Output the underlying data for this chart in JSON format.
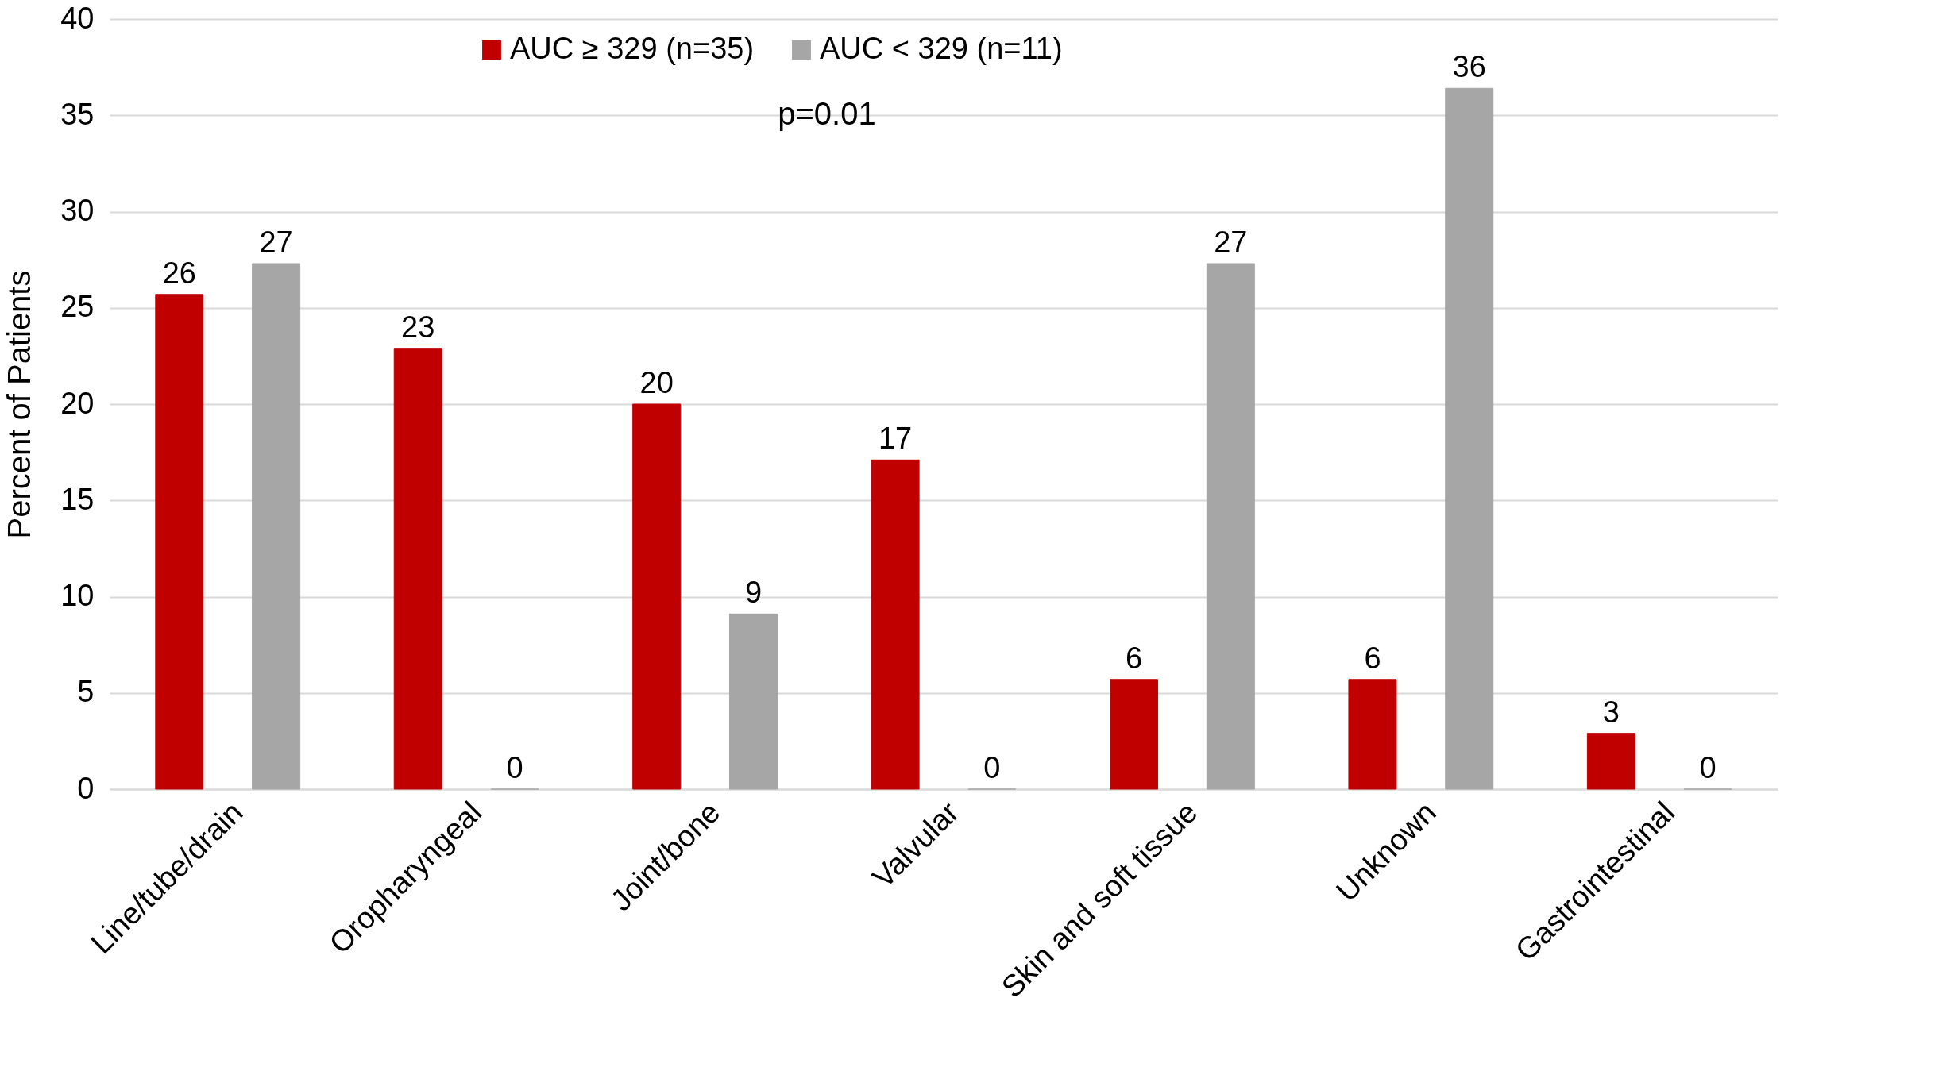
{
  "chart_data": {
    "type": "bar",
    "ylabel": "Percent of Patients",
    "categories": [
      "Line/tube/drain",
      "Oropharyngeal",
      "Joint/bone",
      "Valvular",
      "Skin and soft tissue",
      "Unknown",
      "Gastrointestinal"
    ],
    "series": [
      {
        "name": "AUC ≥ 329 (n=35)",
        "color": "#c00000",
        "values": [
          25.7,
          22.9,
          20.0,
          17.1,
          5.7,
          5.7,
          2.9
        ],
        "value_labels": [
          "26",
          "23",
          "20",
          "17",
          "6",
          "6",
          "3"
        ]
      },
      {
        "name": "AUC < 329 (n=11)",
        "color": "#a6a6a6",
        "values": [
          27.3,
          0,
          9.1,
          0,
          27.3,
          36.4,
          0
        ],
        "value_labels": [
          "27",
          "0",
          "9",
          "0",
          "27",
          "36",
          "0"
        ]
      }
    ],
    "ylim": [
      0,
      40
    ],
    "yticks": [
      0,
      5,
      10,
      15,
      20,
      25,
      30,
      35,
      40
    ],
    "grid": "y",
    "legend": "top",
    "annotations": [
      "p=0.01"
    ]
  }
}
